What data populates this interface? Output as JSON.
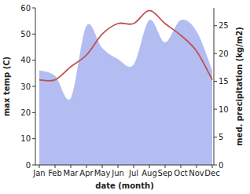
{
  "chart_data": {
    "type": "line",
    "xlabel": "date (month)",
    "ylabel": "max temp (C)",
    "y2label": "med. precipitation (kg/m2)",
    "categories": [
      "Jan",
      "Feb",
      "Mar",
      "Apr",
      "May",
      "Jun",
      "Jul",
      "Aug",
      "Sep",
      "Oct",
      "Nov",
      "Dec"
    ],
    "series": [
      {
        "type": "area",
        "axis": "y2",
        "color": "#b3bdf2",
        "values": [
          17,
          16,
          12,
          25,
          21,
          19,
          18,
          26,
          22,
          26,
          24,
          17
        ]
      },
      {
        "type": "line",
        "color": "#c0504d",
        "values": [
          32.5,
          32.5,
          37.5,
          42,
          50,
          54,
          54,
          59,
          54,
          49.5,
          43.5,
          32.5
        ]
      }
    ],
    "ylim": [
      0,
      60
    ],
    "yticks": [
      0,
      10,
      20,
      30,
      40,
      50,
      60
    ],
    "y2lim": [
      0,
      28.2
    ],
    "y2ticks": [
      0,
      5,
      10,
      15,
      20,
      25
    ],
    "grid": false
  }
}
